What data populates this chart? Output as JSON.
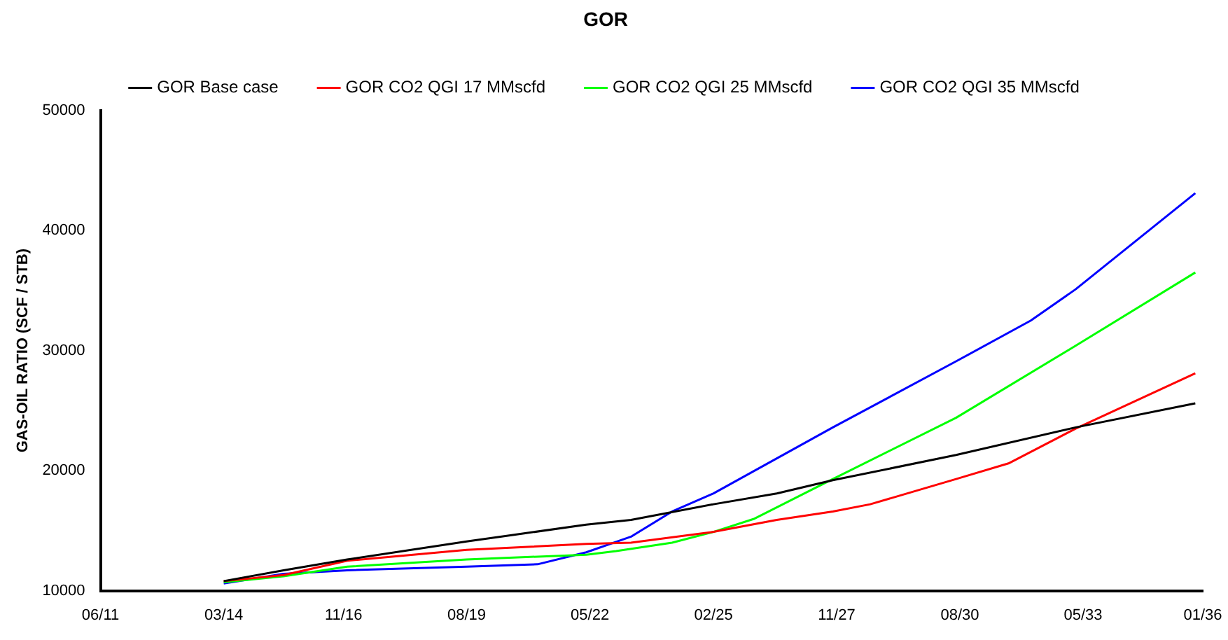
{
  "chart_data": {
    "type": "line",
    "title": "GOR",
    "ylabel": "GAS-OIL RATIO (SCF / STB)",
    "legend": "top",
    "grid": false,
    "marker": "none",
    "line_style": "solid",
    "xlim": [
      "2011-06",
      "2036-01"
    ],
    "xticks": [
      {
        "value": "2011-06",
        "label": "06/11"
      },
      {
        "value": "2014-03",
        "label": "03/14"
      },
      {
        "value": "2016-11",
        "label": "11/16"
      },
      {
        "value": "2019-08",
        "label": "08/19"
      },
      {
        "value": "2022-05",
        "label": "05/22"
      },
      {
        "value": "2025-02",
        "label": "02/25"
      },
      {
        "value": "2027-11",
        "label": "11/27"
      },
      {
        "value": "2030-08",
        "label": "08/30"
      },
      {
        "value": "2033-05",
        "label": "05/33"
      },
      {
        "value": "2036-01",
        "label": "01/36"
      }
    ],
    "ylim": [
      10000,
      50000
    ],
    "yticks": [
      10000,
      20000,
      30000,
      40000,
      50000
    ],
    "series": [
      {
        "name": "GOR Base case",
        "color": "#000000",
        "x": [
          "2014-03",
          "2015-07",
          "2016-12",
          "2019-08",
          "2022-04",
          "2023-04",
          "2025-02",
          "2026-07",
          "2027-10",
          "2030-07",
          "2033-03",
          "2035-11"
        ],
        "values": [
          10800,
          11700,
          12600,
          14100,
          15500,
          15900,
          17200,
          18100,
          19200,
          21300,
          23600,
          25600
        ]
      },
      {
        "name": "GOR CO2 QGI 17 MMscfd",
        "color": "#ff0000",
        "x": [
          "2014-03",
          "2015-07",
          "2016-12",
          "2019-08",
          "2022-04",
          "2023-04",
          "2025-02",
          "2026-07",
          "2027-10",
          "2028-08",
          "2030-07",
          "2031-09",
          "2033-03",
          "2035-11"
        ],
        "values": [
          10800,
          11300,
          12500,
          13400,
          13900,
          14000,
          14900,
          15900,
          16600,
          17200,
          19300,
          20600,
          23500,
          28100
        ]
      },
      {
        "name": "GOR CO2 QGI 25 MMscfd",
        "color": "#00ff00",
        "x": [
          "2014-03",
          "2015-07",
          "2016-12",
          "2019-08",
          "2022-04",
          "2022-12",
          "2024-03",
          "2025-02",
          "2026-01",
          "2027-10",
          "2030-07",
          "2033-03",
          "2035-11"
        ],
        "values": [
          10700,
          11200,
          12000,
          12600,
          13000,
          13300,
          14000,
          14900,
          16000,
          19300,
          24400,
          30400,
          36500
        ]
      },
      {
        "name": "GOR CO2 QGI 35 MMscfd",
        "color": "#0000ff",
        "x": [
          "2014-03",
          "2015-07",
          "2016-12",
          "2019-08",
          "2021-03",
          "2022-04",
          "2023-04",
          "2024-03",
          "2025-02",
          "2027-10",
          "2030-07",
          "2032-03",
          "2033-03",
          "2035-11"
        ],
        "values": [
          10600,
          11400,
          11700,
          12000,
          12200,
          13200,
          14500,
          16600,
          18100,
          23600,
          29100,
          32500,
          35100,
          43100
        ]
      }
    ]
  }
}
